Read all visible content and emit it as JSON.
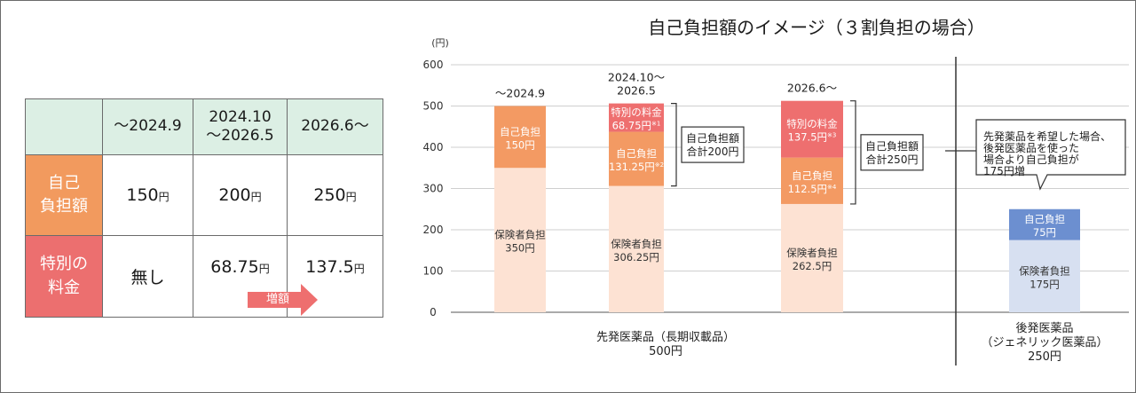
{
  "comparison_table": {
    "columns": [
      "～2024.9",
      "2024.10\n～2026.5",
      "2026.6～"
    ],
    "rows": [
      {
        "label": "自己\n負担額",
        "values": [
          {
            "num": "150",
            "unit": "円"
          },
          {
            "num": "200",
            "unit": "円"
          },
          {
            "num": "250",
            "unit": "円"
          }
        ]
      },
      {
        "label": "特別の\n料金",
        "values": [
          {
            "num": "無し",
            "unit": ""
          },
          {
            "num": "68.75",
            "unit": "円"
          },
          {
            "num": "137.5",
            "unit": "円"
          }
        ]
      }
    ],
    "increase_label": "増額"
  },
  "colors": {
    "insurer": "#fde2d3",
    "copay": "#f39a63",
    "special": "#ee6f6f",
    "generic_insurer": "#d7e0f1",
    "generic_copay": "#6c8fd0",
    "header_green": "#dcefe4"
  },
  "chart_data": {
    "type": "bar",
    "stacked": true,
    "title": "自己負担額のイメージ（３割負担の場合）",
    "y_unit": "(円)",
    "ylim": [
      0,
      600
    ],
    "yticks": [
      0,
      100,
      200,
      300,
      400,
      500,
      600
    ],
    "grid": true,
    "bars": [
      {
        "top_label": "～2024.9",
        "segments": [
          {
            "kind": "insurer",
            "label": "保険者負担",
            "value_text": "350円",
            "value": 350
          },
          {
            "kind": "copay",
            "label": "自己負担",
            "value_text": "150円",
            "value": 150
          }
        ]
      },
      {
        "top_label": "2024.10～\n2026.5",
        "segments": [
          {
            "kind": "insurer",
            "label": "保険者負担",
            "value_text": "306.25円",
            "value": 306.25
          },
          {
            "kind": "copay",
            "label": "自己負担",
            "value_text": "131.25円",
            "note": "※2",
            "value": 131.25
          },
          {
            "kind": "special",
            "label": "特別の料金",
            "value_text": "68.75円",
            "note": "※1",
            "value": 68.75
          }
        ],
        "bracket_label": "自己負担額\n合計200円"
      },
      {
        "top_label": "2026.6～",
        "segments": [
          {
            "kind": "insurer",
            "label": "保険者負担",
            "value_text": "262.5円",
            "value": 262.5
          },
          {
            "kind": "copay",
            "label": "自己負担",
            "value_text": "112.5円",
            "note": "※4",
            "value": 112.5
          },
          {
            "kind": "special",
            "label": "特別の料金",
            "value_text": "137.5円",
            "note": "※3",
            "value": 137.5
          }
        ],
        "bracket_label": "自己負担額\n合計250円"
      },
      {
        "top_label": "",
        "segments": [
          {
            "kind": "generic_insurer",
            "label": "保険者負担",
            "value_text": "175円",
            "value": 175
          },
          {
            "kind": "generic_copay",
            "label": "自己負担",
            "value_text": "75円",
            "value": 75
          }
        ]
      }
    ],
    "groups": [
      {
        "label": "先発医薬品（長期収載品）\n500円"
      },
      {
        "label": "後発医薬品\n（ジェネリック医薬品）\n250円"
      }
    ],
    "callout": "先発薬品を希望した場合、\n後発医薬品を使った\n場合より自己負担が\n175円増"
  }
}
